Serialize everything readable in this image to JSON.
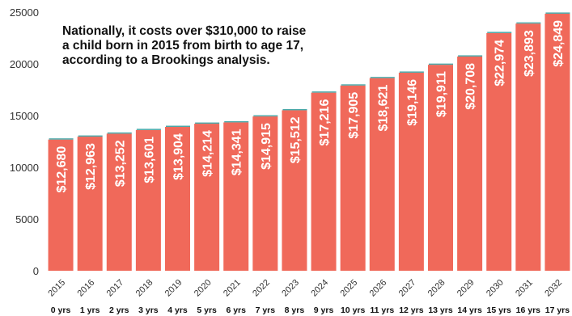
{
  "chart_data": {
    "type": "bar",
    "categories": [
      "2015",
      "2016",
      "2017",
      "2018",
      "2019",
      "2020",
      "2021",
      "2022",
      "2023",
      "2024",
      "2025",
      "2026",
      "2027",
      "2028",
      "2029",
      "2030",
      "2031",
      "2032"
    ],
    "age_labels": [
      "0 yrs",
      "1 yrs",
      "2 yrs",
      "3 yrs",
      "4 yrs",
      "5 yrs",
      "6 yrs",
      "7 yrs",
      "8 yrs",
      "9 yrs",
      "10 yrs",
      "11 yrs",
      "12 yrs",
      "13 yrs",
      "14 yrs",
      "15 yrs",
      "16 yrs",
      "17 yrs"
    ],
    "values": [
      12680,
      12963,
      13252,
      13601,
      13904,
      14214,
      14341,
      14915,
      15512,
      17216,
      17905,
      18621,
      19146,
      19911,
      20708,
      22974,
      23893,
      24849
    ],
    "value_labels": [
      "$12,680",
      "$12,963",
      "$13,252",
      "$13,601",
      "$13,904",
      "$14,214",
      "$14,341",
      "$14,915",
      "$15,512",
      "$17,216",
      "$17,905",
      "$18,621",
      "$19,146",
      "$19,911",
      "$20,708",
      "$22,974",
      "$23,893",
      "$24,849"
    ],
    "ylim": [
      0,
      25000
    ],
    "yticks": [
      0,
      5000,
      10000,
      15000,
      20000,
      25000
    ],
    "ytick_labels": [
      "0",
      "5000",
      "10000",
      "15000",
      "20000",
      "25000"
    ],
    "annotation_lines": [
      "Nationally, it costs over $310,000 to raise",
      "a child born in 2015 from birth to age 17,",
      "according to a Brookings analysis."
    ],
    "grid": false,
    "bar_color": "#f0695a",
    "accent_color": "#4aa8a8"
  }
}
